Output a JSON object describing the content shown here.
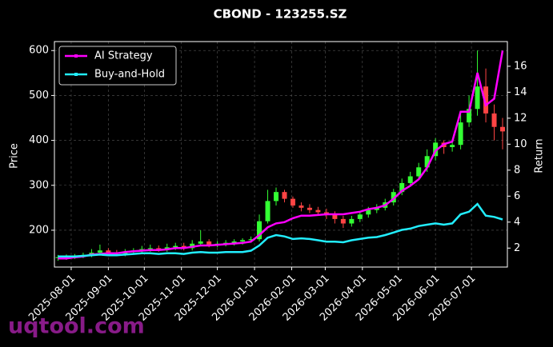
{
  "chart_data": {
    "type": "candlestick",
    "title": "CBOND - 123255.SZ",
    "y_label": "Price",
    "y2_label": "Return",
    "watermark": "uqtool.com",
    "grid": true,
    "legend": "upper left",
    "up_color": "#33ff33",
    "down_color": "#ff4444",
    "x": [
      "2025-07-21",
      "2025-07-28",
      "2025-08-04",
      "2025-08-11",
      "2025-08-18",
      "2025-08-25",
      "2025-09-01",
      "2025-09-08",
      "2025-09-15",
      "2025-09-22",
      "2025-09-29",
      "2025-10-06",
      "2025-10-13",
      "2025-10-20",
      "2025-10-27",
      "2025-11-03",
      "2025-11-10",
      "2025-11-17",
      "2025-11-24",
      "2025-12-01",
      "2025-12-08",
      "2025-12-15",
      "2025-12-22",
      "2025-12-29",
      "2026-01-05",
      "2026-01-12",
      "2026-01-19",
      "2026-01-26",
      "2026-02-02",
      "2026-02-09",
      "2026-02-16",
      "2026-02-23",
      "2026-03-02",
      "2026-03-09",
      "2026-03-16",
      "2026-03-23",
      "2026-03-30",
      "2026-04-06",
      "2026-04-13",
      "2026-04-20",
      "2026-04-27",
      "2026-05-04",
      "2026-05-11",
      "2026-05-18",
      "2026-05-25",
      "2026-06-01",
      "2026-06-08",
      "2026-06-15",
      "2026-06-22",
      "2026-06-29",
      "2026-07-06",
      "2026-07-13",
      "2026-07-20",
      "2026-07-27"
    ],
    "open": [
      138,
      140,
      142,
      143,
      145,
      150,
      155,
      150,
      148,
      152,
      155,
      158,
      160,
      158,
      162,
      165,
      160,
      170,
      175,
      168,
      170,
      172,
      175,
      178,
      180,
      220,
      265,
      285,
      270,
      255,
      250,
      245,
      240,
      235,
      225,
      215,
      225,
      235,
      245,
      250,
      262,
      285,
      305,
      320,
      340,
      365,
      395,
      385,
      390,
      440,
      470,
      520,
      460,
      430
    ],
    "high": [
      145,
      146,
      147,
      150,
      158,
      168,
      160,
      156,
      158,
      160,
      165,
      168,
      166,
      170,
      172,
      172,
      178,
      200,
      180,
      176,
      178,
      180,
      182,
      186,
      235,
      290,
      295,
      290,
      275,
      262,
      258,
      252,
      248,
      242,
      232,
      232,
      242,
      252,
      258,
      270,
      292,
      315,
      330,
      350,
      380,
      405,
      400,
      400,
      460,
      500,
      600,
      560,
      480,
      450
    ],
    "low": [
      132,
      134,
      136,
      138,
      140,
      145,
      145,
      142,
      142,
      148,
      150,
      152,
      152,
      152,
      156,
      155,
      155,
      165,
      162,
      162,
      164,
      166,
      168,
      172,
      175,
      215,
      255,
      262,
      250,
      242,
      238,
      232,
      225,
      215,
      205,
      208,
      218,
      228,
      238,
      244,
      255,
      278,
      298,
      312,
      330,
      355,
      370,
      375,
      380,
      430,
      455,
      440,
      400,
      380
    ],
    "close": [
      140,
      142,
      143,
      145,
      150,
      155,
      150,
      148,
      152,
      155,
      158,
      160,
      158,
      162,
      165,
      160,
      170,
      175,
      168,
      170,
      172,
      175,
      178,
      180,
      220,
      265,
      285,
      270,
      255,
      250,
      245,
      240,
      235,
      225,
      215,
      225,
      235,
      245,
      250,
      262,
      285,
      305,
      320,
      340,
      365,
      395,
      385,
      390,
      440,
      470,
      520,
      460,
      430,
      420
    ],
    "series": [
      {
        "name": "AI Strategy",
        "color": "#ff00ff",
        "axis": "y2",
        "values": [
          1.2,
          1.2,
          1.3,
          1.35,
          1.5,
          1.55,
          1.6,
          1.6,
          1.7,
          1.75,
          1.8,
          1.85,
          1.85,
          1.9,
          2.0,
          2.0,
          2.1,
          2.2,
          2.2,
          2.25,
          2.3,
          2.35,
          2.4,
          2.5,
          3.0,
          3.6,
          3.9,
          4.0,
          4.3,
          4.5,
          4.5,
          4.55,
          4.6,
          4.6,
          4.6,
          4.7,
          4.8,
          5.0,
          5.1,
          5.3,
          5.8,
          6.4,
          6.8,
          7.3,
          8.2,
          9.5,
          10.0,
          10.2,
          12.5,
          12.5,
          15.5,
          13.0,
          13.5,
          17.2
        ]
      },
      {
        "name": "Buy-and-Hold",
        "color": "#22eeff",
        "axis": "y2",
        "values": [
          1.35,
          1.35,
          1.35,
          1.4,
          1.45,
          1.5,
          1.45,
          1.45,
          1.5,
          1.55,
          1.6,
          1.6,
          1.55,
          1.6,
          1.6,
          1.55,
          1.65,
          1.7,
          1.65,
          1.65,
          1.7,
          1.7,
          1.7,
          1.8,
          2.2,
          2.8,
          3.0,
          2.9,
          2.7,
          2.75,
          2.7,
          2.6,
          2.5,
          2.5,
          2.45,
          2.6,
          2.7,
          2.8,
          2.85,
          3.0,
          3.2,
          3.4,
          3.5,
          3.7,
          3.8,
          3.9,
          3.8,
          3.9,
          4.6,
          4.8,
          5.4,
          4.5,
          4.4,
          4.2
        ]
      }
    ],
    "xlim": [
      "2025-07-18",
      "2026-07-31"
    ],
    "xticks": [
      "2025-08-01",
      "2025-09-01",
      "2025-10-01",
      "2025-11-01",
      "2025-12-01",
      "2026-01-01",
      "2026-02-01",
      "2026-03-01",
      "2026-04-01",
      "2026-05-01",
      "2026-06-01",
      "2026-07-01"
    ],
    "ylim": [
      118,
      620
    ],
    "yticks": [
      200,
      300,
      400,
      500,
      600
    ],
    "y2lim": [
      0.54,
      17.9
    ],
    "y2ticks": [
      2,
      4,
      6,
      8,
      10,
      12,
      14,
      16
    ]
  }
}
